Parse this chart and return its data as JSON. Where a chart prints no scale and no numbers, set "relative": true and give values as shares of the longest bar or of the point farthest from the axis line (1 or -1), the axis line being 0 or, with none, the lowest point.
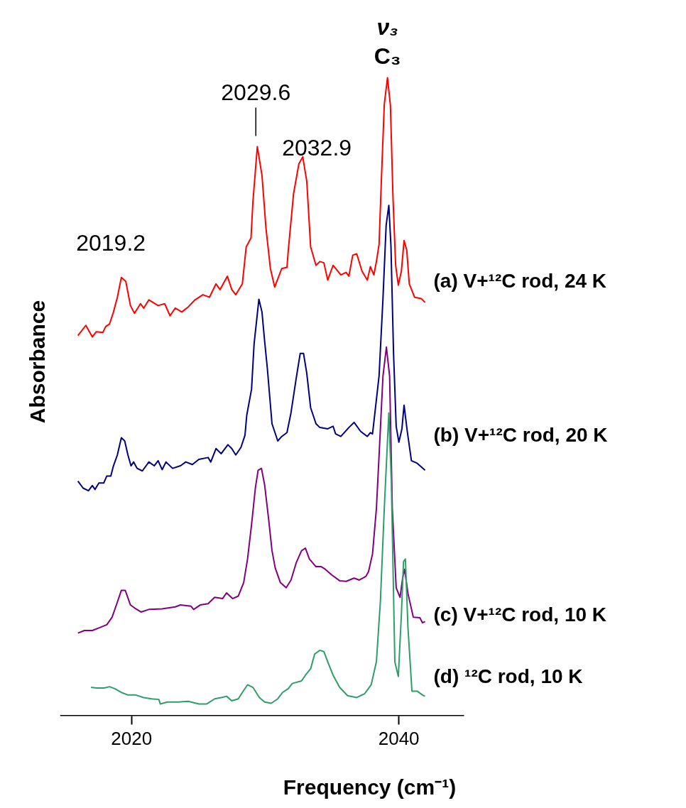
{
  "chart_data": {
    "type": "line",
    "relative": true,
    "xlabel": "Frequency (cm⁻¹)",
    "ylabel": "Absorbance",
    "xlim": [
      2014.65,
      2044.88
    ],
    "xticks": [
      2020,
      2040
    ],
    "series": [
      {
        "name": "(a) V+¹²C rod, 24 K",
        "color": "#ff0000",
        "x": [
          2015.99,
          2016.58,
          2017.07,
          2017.37,
          2017.86,
          2018.06,
          2018.35,
          2018.65,
          2018.94,
          2019.24,
          2019.57,
          2019.92,
          2020.22,
          2020.67,
          2020.91,
          2021.3,
          2021.99,
          2022.48,
          2022.88,
          2023.27,
          2023.76,
          2024.25,
          2024.75,
          2025.34,
          2025.83,
          2026.32,
          2026.62,
          2027.17,
          2027.5,
          2027.8,
          2028.29,
          2028.58,
          2028.94,
          2029.08,
          2029.41,
          2029.76,
          2030.06,
          2030.39,
          2030.71,
          2031.24,
          2031.63,
          2031.73,
          2032.12,
          2032.52,
          2032.81,
          2033.11,
          2033.4,
          2033.8,
          2034.09,
          2034.39,
          2034.68,
          2035.08,
          2035.66,
          2036.06,
          2036.26,
          2036.55,
          2036.85,
          2037.24,
          2037.64,
          2037.87,
          2038.13,
          2038.32,
          2038.52,
          2038.72,
          2038.91,
          2039.15,
          2039.37,
          2039.56,
          2039.76,
          2039.96,
          2040.19,
          2040.39,
          2040.59,
          2040.78,
          2041.18,
          2041.67,
          2041.96
        ],
        "values": [
          0.596,
          0.612,
          0.594,
          0.602,
          0.601,
          0.61,
          0.614,
          0.633,
          0.656,
          0.687,
          0.681,
          0.643,
          0.631,
          0.646,
          0.639,
          0.652,
          0.643,
          0.646,
          0.627,
          0.639,
          0.633,
          0.641,
          0.652,
          0.66,
          0.656,
          0.677,
          0.668,
          0.689,
          0.668,
          0.66,
          0.677,
          0.735,
          0.749,
          0.805,
          0.892,
          0.847,
          0.764,
          0.701,
          0.672,
          0.701,
          0.703,
          0.73,
          0.818,
          0.865,
          0.876,
          0.838,
          0.735,
          0.706,
          0.712,
          0.71,
          0.683,
          0.706,
          0.691,
          0.695,
          0.689,
          0.722,
          0.724,
          0.697,
          0.683,
          0.704,
          0.691,
          0.712,
          0.739,
          0.855,
          0.958,
          1.0,
          0.956,
          0.813,
          0.706,
          0.675,
          0.697,
          0.745,
          0.73,
          0.677,
          0.656,
          0.654,
          0.648
        ]
      },
      {
        "name": "(b) V+¹²C rod, 20 K",
        "color": "#000080",
        "x": [
          2015.99,
          2016.38,
          2016.78,
          2017.07,
          2017.27,
          2017.56,
          2017.92,
          2018.15,
          2018.45,
          2018.65,
          2018.94,
          2019.24,
          2019.49,
          2019.73,
          2019.96,
          2020.16,
          2020.42,
          2020.81,
          2021.3,
          2021.7,
          2021.99,
          2022.29,
          2022.58,
          2023.07,
          2023.66,
          2024.06,
          2024.55,
          2025.04,
          2025.73,
          2025.93,
          2026.32,
          2026.71,
          2027.21,
          2027.5,
          2027.8,
          2028.19,
          2028.49,
          2028.62,
          2028.98,
          2029.17,
          2029.53,
          2029.76,
          2029.96,
          2030.16,
          2030.51,
          2030.94,
          2031.24,
          2031.63,
          2031.93,
          2032.32,
          2032.62,
          2032.87,
          2033.11,
          2033.4,
          2033.8,
          2034.09,
          2034.68,
          2035.08,
          2035.27,
          2035.66,
          2036.26,
          2036.65,
          2037.14,
          2037.64,
          2037.87,
          2038.03,
          2038.22,
          2038.52,
          2038.81,
          2039.05,
          2039.25,
          2039.41,
          2039.6,
          2039.8,
          2040.0,
          2040.23,
          2040.39,
          2040.63,
          2040.94,
          2041.37,
          2041.96
        ],
        "values": [
          0.368,
          0.357,
          0.353,
          0.361,
          0.355,
          0.365,
          0.365,
          0.376,
          0.376,
          0.392,
          0.409,
          0.436,
          0.431,
          0.409,
          0.392,
          0.398,
          0.388,
          0.384,
          0.398,
          0.392,
          0.4,
          0.386,
          0.398,
          0.388,
          0.392,
          0.398,
          0.394,
          0.402,
          0.405,
          0.398,
          0.419,
          0.411,
          0.425,
          0.419,
          0.409,
          0.421,
          0.44,
          0.471,
          0.512,
          0.583,
          0.653,
          0.633,
          0.587,
          0.545,
          0.458,
          0.431,
          0.438,
          0.444,
          0.475,
          0.529,
          0.568,
          0.568,
          0.537,
          0.483,
          0.458,
          0.452,
          0.45,
          0.454,
          0.442,
          0.438,
          0.452,
          0.46,
          0.446,
          0.438,
          0.444,
          0.442,
          0.477,
          0.533,
          0.653,
          0.769,
          0.8,
          0.736,
          0.57,
          0.454,
          0.429,
          0.45,
          0.487,
          0.446,
          0.4,
          0.396,
          0.385
        ]
      },
      {
        "name": "(c) V+¹²C rod, 10 K",
        "color": "#800080",
        "x": [
          2015.99,
          2016.48,
          2017.07,
          2017.56,
          2018.15,
          2018.55,
          2018.9,
          2019.24,
          2019.53,
          2019.92,
          2020.32,
          2020.71,
          2021.3,
          2022.29,
          2023.27,
          2023.66,
          2024.45,
          2024.65,
          2025.14,
          2025.73,
          2026.22,
          2026.81,
          2027.11,
          2027.56,
          2027.99,
          2028.39,
          2028.68,
          2028.98,
          2029.27,
          2029.47,
          2029.72,
          2029.96,
          2030.26,
          2030.51,
          2030.75,
          2031.14,
          2031.57,
          2031.93,
          2032.32,
          2032.72,
          2033.01,
          2033.31,
          2033.8,
          2034.19,
          2034.49,
          2034.98,
          2035.57,
          2036.06,
          2036.65,
          2037.04,
          2037.54,
          2037.73,
          2038.03,
          2038.32,
          2038.52,
          2038.81,
          2039.07,
          2039.31,
          2039.51,
          2039.8,
          2040.09,
          2040.29,
          2040.43,
          2040.68,
          2041.08,
          2041.57,
          2041.77,
          2041.96
        ],
        "values": [
          0.13,
          0.134,
          0.134,
          0.138,
          0.143,
          0.155,
          0.176,
          0.197,
          0.197,
          0.174,
          0.168,
          0.163,
          0.167,
          0.168,
          0.171,
          0.174,
          0.172,
          0.167,
          0.174,
          0.176,
          0.186,
          0.184,
          0.193,
          0.184,
          0.188,
          0.209,
          0.246,
          0.3,
          0.358,
          0.385,
          0.388,
          0.362,
          0.308,
          0.259,
          0.232,
          0.209,
          0.201,
          0.213,
          0.24,
          0.259,
          0.263,
          0.246,
          0.234,
          0.234,
          0.23,
          0.221,
          0.212,
          0.211,
          0.216,
          0.213,
          0.219,
          0.226,
          0.254,
          0.325,
          0.408,
          0.532,
          0.578,
          0.532,
          0.325,
          0.201,
          0.186,
          0.217,
          0.23,
          0.192,
          0.155,
          0.154,
          0.146,
          0.148
        ]
      },
      {
        "name": "(d) ¹²C rod, 10 K",
        "color": "#2e9e68",
        "x": [
          2016.97,
          2017.37,
          2017.96,
          2018.35,
          2018.74,
          2019.24,
          2019.73,
          2020.32,
          2020.91,
          2021.5,
          2022.05,
          2022.15,
          2022.68,
          2023.47,
          2024.25,
          2025.04,
          2025.63,
          2026.22,
          2026.71,
          2027.11,
          2027.5,
          2027.99,
          2028.29,
          2028.68,
          2029.08,
          2029.57,
          2029.96,
          2030.45,
          2030.94,
          2031.3,
          2031.73,
          2032.03,
          2032.72,
          2033.01,
          2033.4,
          2033.7,
          2034.09,
          2034.39,
          2034.68,
          2035.08,
          2035.57,
          2036.16,
          2036.85,
          2037.44,
          2037.93,
          2038.32,
          2038.62,
          2038.91,
          2039.25,
          2039.44,
          2039.7,
          2039.96,
          2040.19,
          2040.35,
          2040.49,
          2040.68,
          2040.98,
          2041.37,
          2041.77,
          2041.96
        ],
        "values": [
          0.045,
          0.044,
          0.044,
          0.046,
          0.043,
          0.037,
          0.033,
          0.033,
          0.029,
          0.027,
          0.026,
          0.019,
          0.022,
          0.022,
          0.023,
          0.019,
          0.019,
          0.027,
          0.029,
          0.031,
          0.024,
          0.027,
          0.037,
          0.049,
          0.045,
          0.029,
          0.022,
          0.02,
          0.027,
          0.037,
          0.043,
          0.051,
          0.055,
          0.064,
          0.074,
          0.097,
          0.103,
          0.101,
          0.085,
          0.064,
          0.045,
          0.032,
          0.029,
          0.035,
          0.049,
          0.085,
          0.18,
          0.325,
          0.475,
          0.366,
          0.085,
          0.062,
          0.159,
          0.242,
          0.246,
          0.139,
          0.039,
          0.039,
          0.033,
          0.031
        ]
      }
    ],
    "annotations": [
      {
        "text": "2019.2",
        "x": 2019.2,
        "y": 0.687
      },
      {
        "text": "2029.6",
        "x": 2029.3,
        "y": 0.892
      },
      {
        "text": "2032.9",
        "x": 2032.8,
        "y": 0.876
      },
      {
        "text": "ν₃",
        "x": 2039.15,
        "y": 1.0
      },
      {
        "text": "C₃",
        "x": 2039.15,
        "y": 1.0
      }
    ]
  }
}
